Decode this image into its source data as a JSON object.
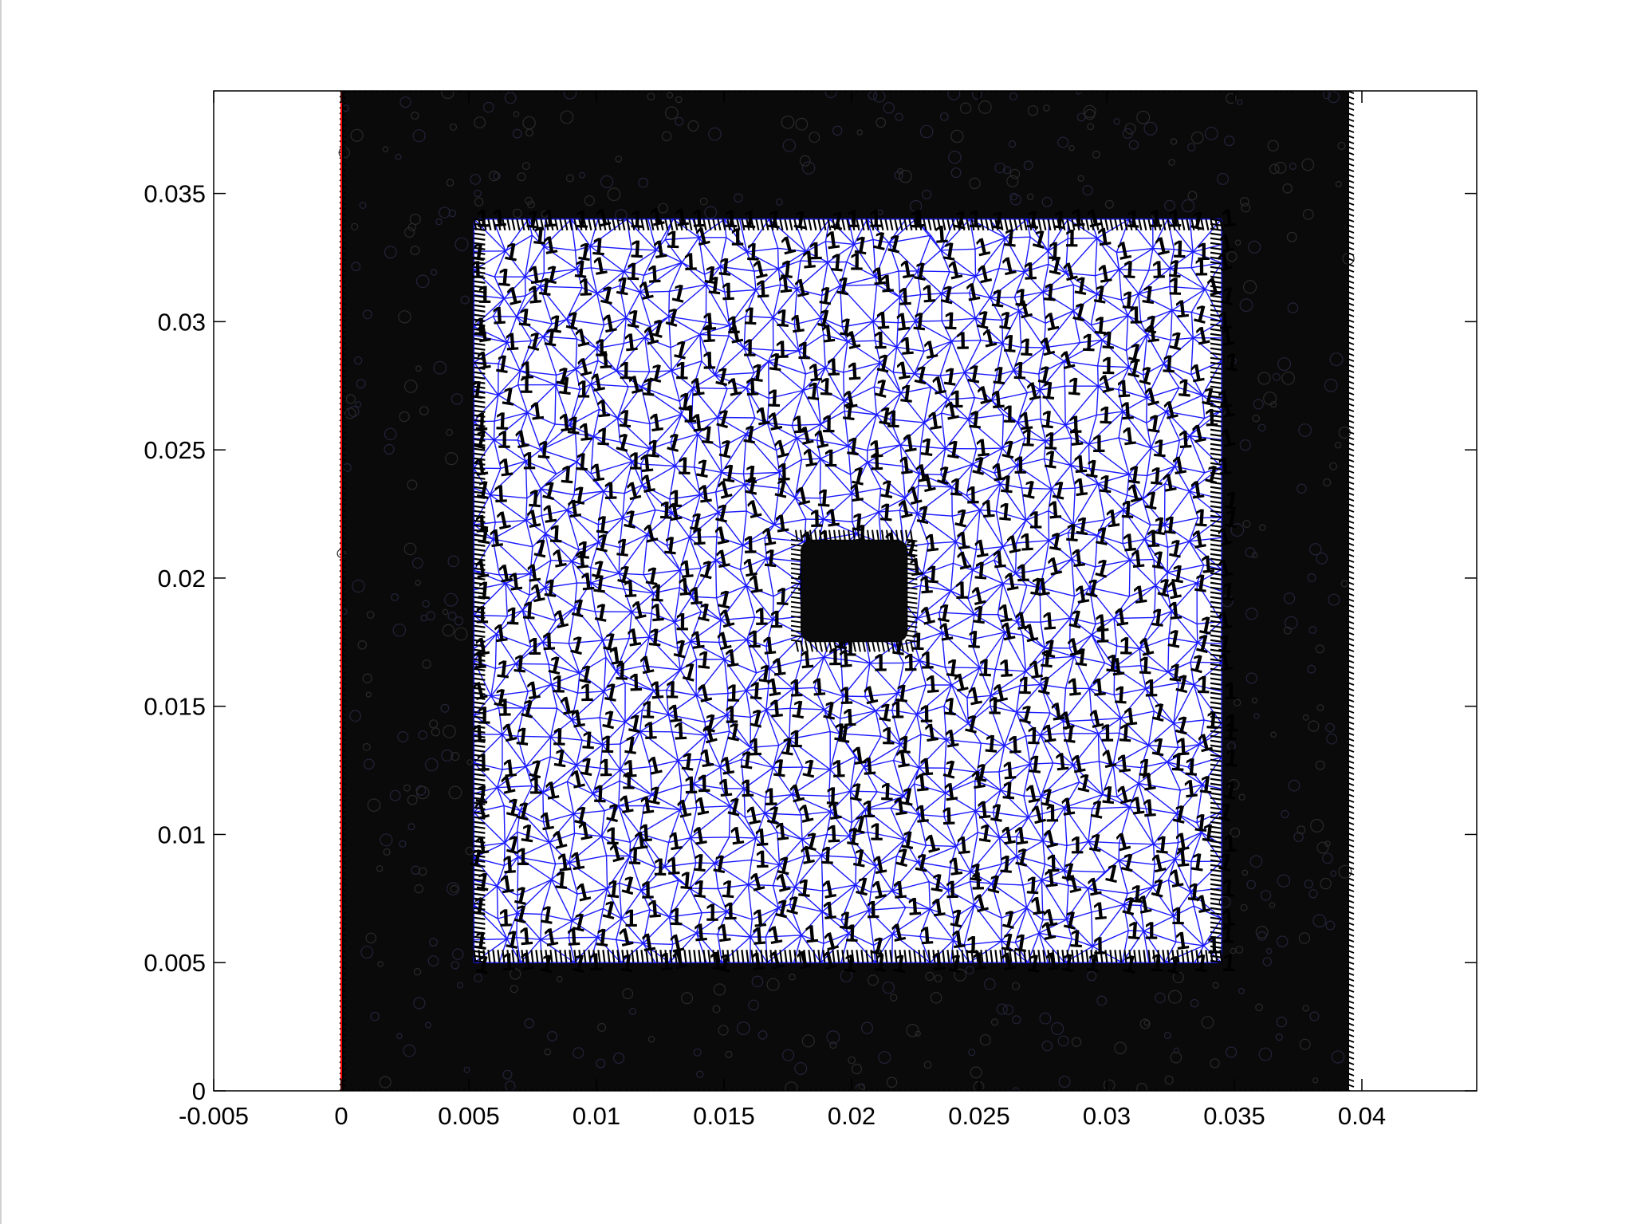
{
  "figure": {
    "background": "#ffffff"
  },
  "chart_data": {
    "type": "scatter",
    "description_note": "",
    "title": "",
    "xlabel": "",
    "ylabel": "",
    "xlim": [
      -0.005,
      0.0445
    ],
    "ylim": [
      0,
      0.039
    ],
    "grid": false,
    "legend": "none",
    "x_ticks": [
      -0.005,
      0,
      0.005,
      0.01,
      0.015,
      0.02,
      0.025,
      0.03,
      0.035,
      0.04
    ],
    "x_tick_labels": [
      "-0.005",
      "0",
      "0.005",
      "0.01",
      "0.015",
      "0.02",
      "0.025",
      "0.03",
      "0.035",
      "0.04"
    ],
    "y_ticks": [
      0,
      0.005,
      0.01,
      0.015,
      0.02,
      0.025,
      0.03,
      0.035
    ],
    "y_tick_labels": [
      "0",
      "0.005",
      "0.01",
      "0.015",
      "0.02",
      "0.025",
      "0.03",
      "0.035"
    ],
    "regions": {
      "outer_domain": {
        "x": [
          0,
          0.0395
        ],
        "y": [
          0,
          0.039
        ]
      },
      "inner_square": {
        "x": [
          0.0052,
          0.0345
        ],
        "y": [
          0.005,
          0.034
        ]
      },
      "center_block": {
        "x": [
          0.018,
          0.0222
        ],
        "y": [
          0.0175,
          0.0215
        ]
      }
    },
    "boundary_line_x": 0,
    "mesh_marker_label": "1",
    "colors": {
      "mesh_edges": "#1a1aff",
      "markers": "#000000",
      "boundary_line": "#ff0000",
      "axes": "#000000"
    }
  }
}
